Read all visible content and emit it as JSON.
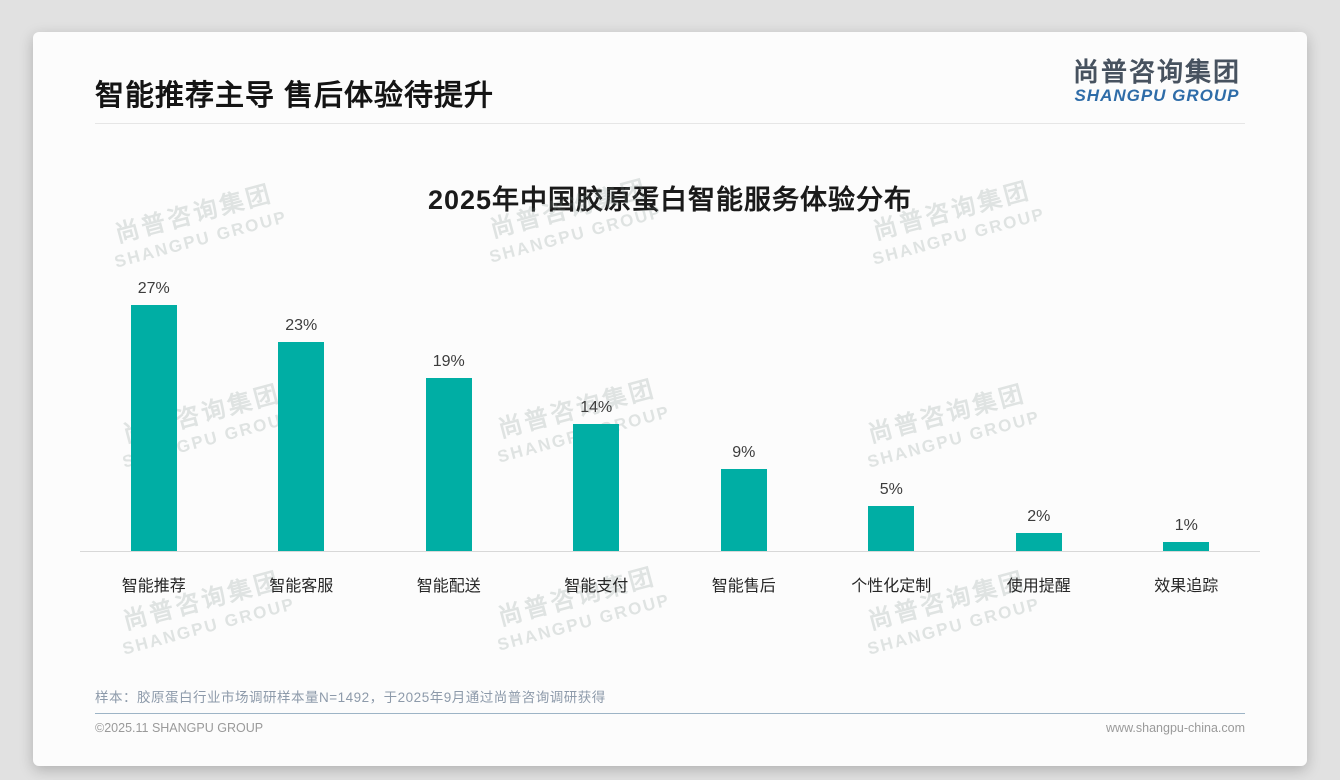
{
  "slide": {
    "title": "智能推荐主导 售后体验待提升",
    "logo": {
      "cn": "尚普咨询集团",
      "en": "SHANGPU GROUP"
    },
    "watermark": {
      "cn": "尚普咨询集团",
      "en": "SHANGPU GROUP"
    },
    "footnote": "样本：胶原蛋白行业市场调研样本量N=1492，于2025年9月通过尚普咨询调研获得",
    "footer_left": "©2025.11 SHANGPU GROUP",
    "footer_right": "www.shangpu-china.com"
  },
  "chart_data": {
    "type": "bar",
    "title": "2025年中国胶原蛋白智能服务体验分布",
    "categories": [
      "智能推荐",
      "智能客服",
      "智能配送",
      "智能支付",
      "智能售后",
      "个性化定制",
      "使用提醒",
      "效果追踪"
    ],
    "values": [
      27,
      23,
      19,
      14,
      9,
      5,
      2,
      1
    ],
    "value_labels": [
      "27%",
      "23%",
      "19%",
      "14%",
      "9%",
      "5%",
      "2%",
      "1%"
    ],
    "unit": "%",
    "ylim": [
      0,
      30
    ],
    "xlabel": "",
    "ylabel": "",
    "grid": false,
    "legend": "none",
    "value_label_position": "above-bar",
    "bar_color": "#00AEA4"
  },
  "colors": {
    "bar": "#00AEA4",
    "logo_cn": "#47525f",
    "logo_en": "#2e6ca8",
    "footnote_text": "#8d9aaa",
    "footer_divider": "#9db4c6",
    "footer_text": "#9a9a9a"
  }
}
